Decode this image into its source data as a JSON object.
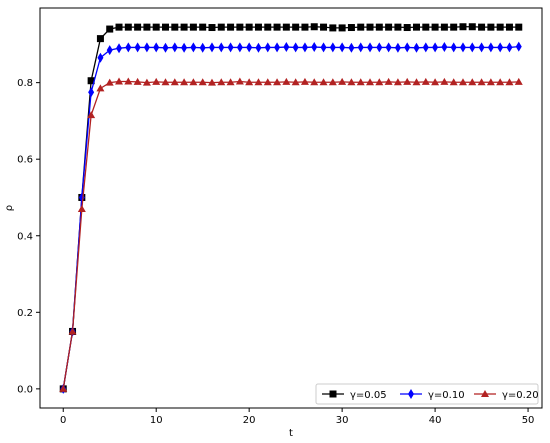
{
  "chart_data": {
    "type": "line",
    "title": "",
    "xlabel": "t",
    "ylabel": "ρ",
    "xlim": [
      -2.5,
      51.5
    ],
    "ylim": [
      -0.05,
      0.995
    ],
    "grid": false,
    "legend_position": "bottom-right",
    "x_ticks": [
      0,
      10,
      20,
      30,
      40,
      50
    ],
    "x_tick_labels": [
      "0",
      "10",
      "20",
      "30",
      "40",
      "50"
    ],
    "y_ticks": [
      0.0,
      0.2,
      0.4,
      0.6,
      0.8
    ],
    "y_tick_labels": [
      "0.0",
      "0.2",
      "0.4",
      "0.6",
      "0.8"
    ],
    "x": [
      0,
      1,
      2,
      3,
      4,
      5,
      6,
      7,
      8,
      9,
      10,
      11,
      12,
      13,
      14,
      15,
      16,
      17,
      18,
      19,
      20,
      21,
      22,
      23,
      24,
      25,
      26,
      27,
      28,
      29,
      30,
      31,
      32,
      33,
      34,
      35,
      36,
      37,
      38,
      39,
      40,
      41,
      42,
      43,
      44,
      45,
      46,
      47,
      48,
      49
    ],
    "series": [
      {
        "name": "γ=0.05",
        "color": "#000000",
        "marker": "square",
        "values": [
          0.0,
          0.15,
          0.5,
          0.805,
          0.915,
          0.94,
          0.945,
          0.945,
          0.945,
          0.945,
          0.945,
          0.945,
          0.945,
          0.945,
          0.945,
          0.945,
          0.944,
          0.945,
          0.945,
          0.945,
          0.945,
          0.945,
          0.945,
          0.945,
          0.945,
          0.945,
          0.945,
          0.946,
          0.945,
          0.943,
          0.943,
          0.944,
          0.945,
          0.945,
          0.945,
          0.945,
          0.945,
          0.944,
          0.945,
          0.945,
          0.945,
          0.945,
          0.945,
          0.946,
          0.946,
          0.945,
          0.945,
          0.945,
          0.945,
          0.945
        ]
      },
      {
        "name": "γ=0.10",
        "color": "#0000ff",
        "marker": "diamond",
        "values": [
          0.0,
          0.15,
          0.5,
          0.775,
          0.865,
          0.885,
          0.89,
          0.892,
          0.892,
          0.892,
          0.892,
          0.891,
          0.892,
          0.891,
          0.892,
          0.891,
          0.892,
          0.892,
          0.892,
          0.892,
          0.892,
          0.891,
          0.892,
          0.892,
          0.893,
          0.892,
          0.892,
          0.893,
          0.892,
          0.892,
          0.892,
          0.891,
          0.892,
          0.892,
          0.892,
          0.892,
          0.891,
          0.892,
          0.891,
          0.892,
          0.892,
          0.893,
          0.892,
          0.892,
          0.892,
          0.892,
          0.892,
          0.892,
          0.892,
          0.894
        ]
      },
      {
        "name": "γ=0.20",
        "color": "#b22222",
        "marker": "triangle",
        "values": [
          0.0,
          0.15,
          0.47,
          0.715,
          0.785,
          0.8,
          0.803,
          0.803,
          0.802,
          0.8,
          0.802,
          0.801,
          0.801,
          0.801,
          0.801,
          0.801,
          0.8,
          0.801,
          0.801,
          0.803,
          0.801,
          0.801,
          0.801,
          0.801,
          0.802,
          0.801,
          0.802,
          0.801,
          0.801,
          0.801,
          0.802,
          0.801,
          0.801,
          0.801,
          0.801,
          0.802,
          0.801,
          0.802,
          0.801,
          0.802,
          0.801,
          0.802,
          0.801,
          0.801,
          0.801,
          0.801,
          0.801,
          0.801,
          0.801,
          0.802
        ]
      }
    ]
  }
}
